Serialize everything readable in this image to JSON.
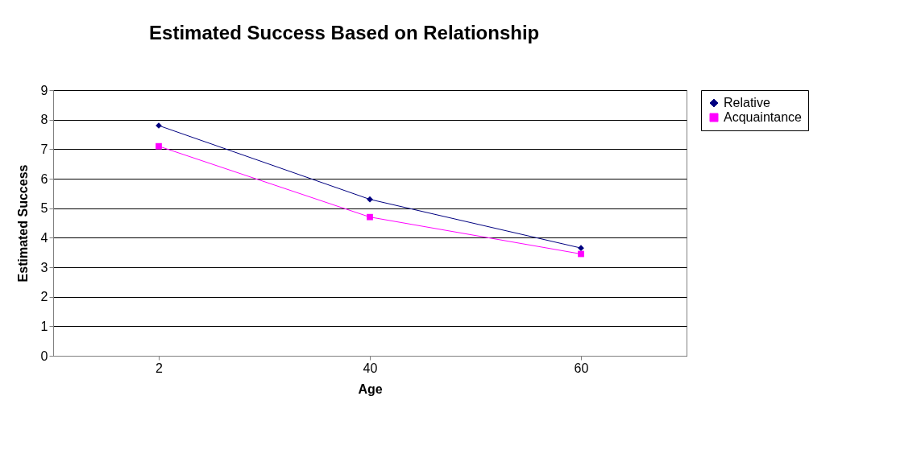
{
  "chart_data": {
    "type": "line",
    "title": "Estimated Success Based on Relationship",
    "xlabel": "Age",
    "ylabel": "Estimated Success",
    "categories": [
      "2",
      "40",
      "60"
    ],
    "series": [
      {
        "name": "Relative",
        "color": "#000080",
        "marker": "diamond",
        "values": [
          7.8,
          5.3,
          3.65
        ]
      },
      {
        "name": "Acquaintance",
        "color": "#ff00ff",
        "marker": "square",
        "values": [
          7.1,
          4.7,
          3.45
        ]
      }
    ],
    "ylim": [
      0,
      9
    ],
    "yticks": [
      0,
      1,
      2,
      3,
      4,
      5,
      6,
      7,
      8,
      9
    ],
    "grid": "y",
    "legend": "right"
  }
}
